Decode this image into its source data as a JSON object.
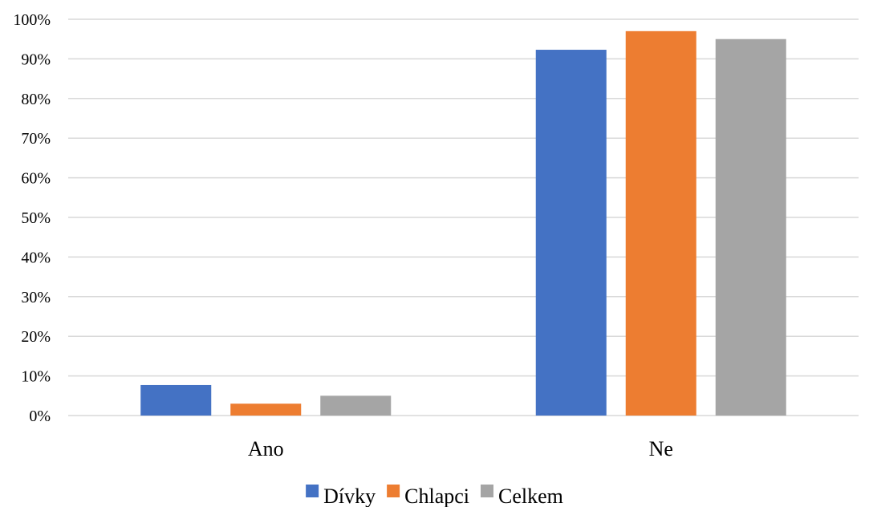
{
  "chart_data": {
    "type": "bar",
    "categories": [
      "Ano",
      "Ne"
    ],
    "series": [
      {
        "name": "Dívky",
        "values": [
          7.7,
          92.3
        ],
        "color": "#4472c4"
      },
      {
        "name": "Chlapci",
        "values": [
          3.0,
          97.0
        ],
        "color": "#ed7d31"
      },
      {
        "name": "Celkem",
        "values": [
          5.0,
          95.0
        ],
        "color": "#a5a5a5"
      }
    ],
    "ylim": [
      0,
      100
    ],
    "yticks": [
      "0%",
      "10%",
      "20%",
      "30%",
      "40%",
      "50%",
      "60%",
      "70%",
      "80%",
      "90%",
      "100%"
    ],
    "grid": true,
    "legend_position": "bottom",
    "title": "",
    "xlabel": "",
    "ylabel": ""
  }
}
